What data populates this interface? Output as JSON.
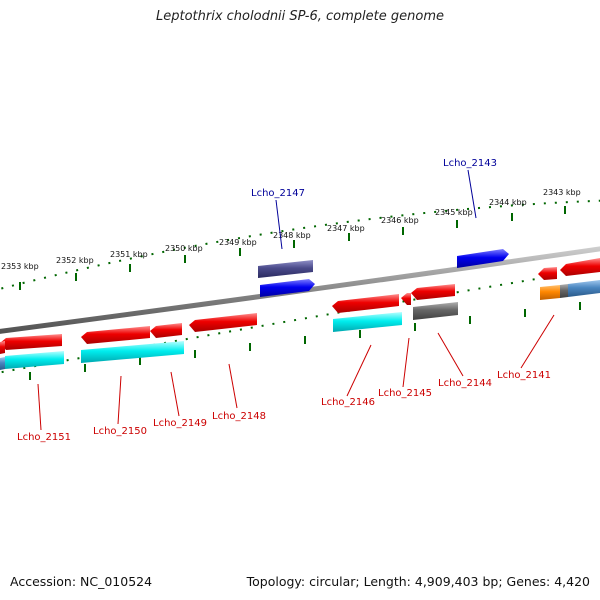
{
  "title": "Leptothrix cholodnii SP-6, complete genome",
  "footer": {
    "accession": "Accession: NC_010524",
    "topology": "Topology: circular; Length: 4,909,403 bp; Genes: 4,420"
  },
  "scale_labels": [
    "2353 kbp",
    "2352 kbp",
    "2351 kbp",
    "2350 kbp",
    "2349 kbp",
    "2348 kbp",
    "2347 kbp",
    "2346 kbp",
    "2345 kbp",
    "2344 kbp",
    "2343 kbp"
  ],
  "gene_labels": {
    "top": [
      "Lcho_2147",
      "Lcho_2143"
    ],
    "bottom": [
      "Lcho_2151",
      "Lcho_2150",
      "Lcho_2149",
      "Lcho_2148",
      "Lcho_2146",
      "Lcho_2145",
      "Lcho_2144",
      "Lcho_2141"
    ]
  },
  "colors": {
    "forward_cds": "#0000ee",
    "reverse_cds": "#ee0000",
    "forward_gene": "#4a4a8a",
    "reverse_gene": "#00e5ee",
    "pseudo": "#666666",
    "orange": "#ff8800",
    "steel": "#4a86c0",
    "backbone": "#888888",
    "ticks": "#006600"
  }
}
